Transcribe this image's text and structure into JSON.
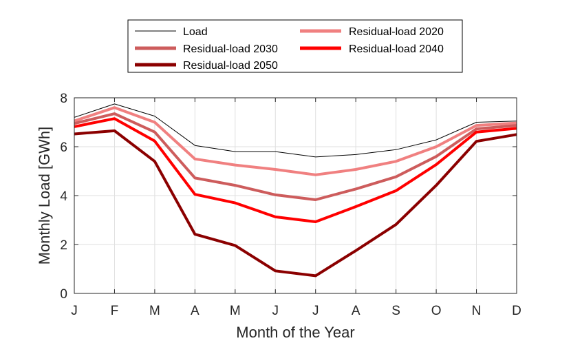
{
  "chart_data": {
    "type": "line",
    "title": "",
    "xlabel": "Month of the Year",
    "ylabel": "Monthly Load [GWh]",
    "categories": [
      "J",
      "F",
      "M",
      "A",
      "M",
      "J",
      "J",
      "A",
      "S",
      "O",
      "N",
      "D"
    ],
    "yticks": [
      0,
      2,
      4,
      6,
      8
    ],
    "ylim": [
      0,
      8
    ],
    "grid": true,
    "legend_position": "top",
    "series": [
      {
        "name": "Load",
        "color": "#000000",
        "values": [
          7.2,
          7.75,
          7.25,
          6.05,
          5.8,
          5.8,
          5.58,
          5.68,
          5.88,
          6.28,
          7.0,
          7.05
        ]
      },
      {
        "name": "Residual-load 2020",
        "color": "#f08080",
        "values": [
          7.05,
          7.6,
          7.0,
          5.5,
          5.25,
          5.07,
          4.85,
          5.07,
          5.4,
          6.0,
          6.87,
          6.97
        ]
      },
      {
        "name": "Residual-load 2030",
        "color": "#cd5c5c",
        "values": [
          6.95,
          7.35,
          6.6,
          4.72,
          4.42,
          4.03,
          3.83,
          4.27,
          4.77,
          5.6,
          6.73,
          6.87
        ]
      },
      {
        "name": "Residual-load 2040",
        "color": "#ff0000",
        "values": [
          6.82,
          7.15,
          6.23,
          4.05,
          3.7,
          3.13,
          2.93,
          3.55,
          4.2,
          5.27,
          6.6,
          6.75
        ]
      },
      {
        "name": "Residual-load 2050",
        "color": "#8b0000",
        "values": [
          6.52,
          6.65,
          5.4,
          2.42,
          1.96,
          0.92,
          0.72,
          1.75,
          2.82,
          4.42,
          6.22,
          6.5
        ]
      }
    ]
  }
}
